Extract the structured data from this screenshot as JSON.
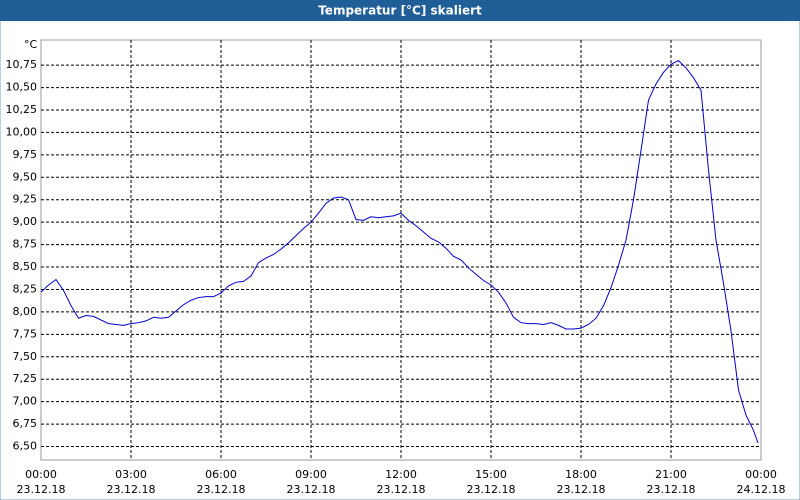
{
  "chart_data": {
    "type": "line",
    "title": "Temperatur [°C] skaliert",
    "y_label": "°C",
    "xlim": [
      0,
      24
    ],
    "ylim": [
      6.35,
      11.03
    ],
    "xticks": [
      {
        "value": 0,
        "label": "00:00",
        "date": "23.12.18"
      },
      {
        "value": 3,
        "label": "03:00",
        "date": "23.12.18"
      },
      {
        "value": 6,
        "label": "06:00",
        "date": "23.12.18"
      },
      {
        "value": 9,
        "label": "09:00",
        "date": "23.12.18"
      },
      {
        "value": 12,
        "label": "12:00",
        "date": "23.12.18"
      },
      {
        "value": 15,
        "label": "15:00",
        "date": "23.12.18"
      },
      {
        "value": 18,
        "label": "18:00",
        "date": "23.12.18"
      },
      {
        "value": 21,
        "label": "21:00",
        "date": "23.12.18"
      },
      {
        "value": 24,
        "label": "00:00",
        "date": "24.12.18"
      }
    ],
    "yticks": [
      {
        "value": 6.5,
        "label": "6,50"
      },
      {
        "value": 6.75,
        "label": "6,75"
      },
      {
        "value": 7,
        "label": "7,00"
      },
      {
        "value": 7.25,
        "label": "7,25"
      },
      {
        "value": 7.5,
        "label": "7,50"
      },
      {
        "value": 7.75,
        "label": "7,75"
      },
      {
        "value": 8,
        "label": "8,00"
      },
      {
        "value": 8.25,
        "label": "8,25"
      },
      {
        "value": 8.5,
        "label": "8,50"
      },
      {
        "value": 8.75,
        "label": "8,75"
      },
      {
        "value": 9,
        "label": "9,00"
      },
      {
        "value": 9.25,
        "label": "9,25"
      },
      {
        "value": 9.5,
        "label": "9,50"
      },
      {
        "value": 9.75,
        "label": "9,75"
      },
      {
        "value": 10,
        "label": "10,00"
      },
      {
        "value": 10.25,
        "label": "10,25"
      },
      {
        "value": 10.5,
        "label": "10,50"
      },
      {
        "value": 10.75,
        "label": "10,75"
      }
    ],
    "grid": true,
    "x": [
      0,
      0.25,
      0.5,
      0.75,
      1,
      1.25,
      1.5,
      1.75,
      2,
      2.25,
      2.5,
      2.75,
      3,
      3.25,
      3.5,
      3.75,
      4,
      4.25,
      4.5,
      4.75,
      5,
      5.25,
      5.5,
      5.75,
      6,
      6.25,
      6.5,
      6.75,
      7,
      7.25,
      7.5,
      7.75,
      8,
      8.25,
      8.5,
      8.75,
      9,
      9.25,
      9.5,
      9.75,
      10,
      10.25,
      10.5,
      10.75,
      11,
      11.25,
      11.5,
      11.75,
      12,
      12.25,
      12.5,
      12.75,
      13,
      13.25,
      13.5,
      13.75,
      14,
      14.25,
      14.5,
      14.75,
      15,
      15.25,
      15.5,
      15.75,
      16,
      16.25,
      16.5,
      16.75,
      17,
      17.25,
      17.5,
      17.75,
      18,
      18.25,
      18.5,
      18.75,
      19,
      19.25,
      19.5,
      19.75,
      20,
      20.25,
      20.5,
      20.75,
      21,
      21.25,
      21.5,
      21.75,
      22,
      22.25,
      22.5,
      22.75,
      23,
      23.25,
      23.5,
      23.75,
      23.9
    ],
    "series": [
      {
        "name": "Temperatur",
        "color": "#0000cc",
        "values": [
          8.22,
          8.3,
          8.36,
          8.24,
          8.07,
          7.93,
          7.96,
          7.95,
          7.91,
          7.87,
          7.86,
          7.85,
          7.87,
          7.88,
          7.9,
          7.94,
          7.93,
          7.94,
          8.01,
          8.08,
          8.13,
          8.16,
          8.17,
          8.17,
          8.21,
          8.29,
          8.33,
          8.34,
          8.4,
          8.55,
          8.6,
          8.64,
          8.7,
          8.77,
          8.85,
          8.93,
          9.0,
          9.1,
          9.21,
          9.27,
          9.28,
          9.25,
          9.03,
          9.02,
          9.06,
          9.05,
          9.06,
          9.07,
          9.1,
          9.02,
          8.96,
          8.89,
          8.82,
          8.78,
          8.71,
          8.62,
          8.58,
          8.49,
          8.42,
          8.35,
          8.3,
          8.22,
          8.1,
          7.94,
          7.88,
          7.87,
          7.87,
          7.86,
          7.88,
          7.85,
          7.81,
          7.81,
          7.82,
          7.86,
          7.93,
          8.07,
          8.27,
          8.52,
          8.8,
          9.25,
          9.8,
          10.36,
          10.54,
          10.67,
          10.76,
          10.8,
          10.72,
          10.61,
          10.47,
          9.58,
          8.8,
          8.32,
          7.79,
          7.13,
          6.85,
          6.68,
          6.54
        ]
      }
    ]
  }
}
